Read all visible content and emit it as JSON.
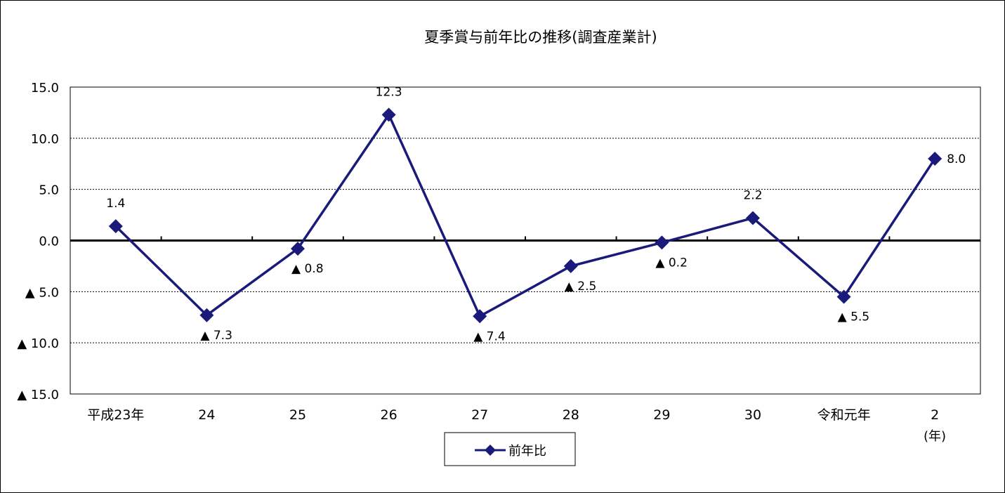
{
  "chart_data": {
    "type": "line",
    "title": "夏季賞与前年比の推移(調査産業計)",
    "categories": [
      "平成23年",
      "24",
      "25",
      "26",
      "27",
      "28",
      "29",
      "30",
      "令和元年",
      "2"
    ],
    "x_unit_label": "(年)",
    "series": [
      {
        "name": "前年比",
        "values": [
          1.4,
          -7.3,
          -0.8,
          12.3,
          -7.4,
          -2.5,
          -0.2,
          2.2,
          -5.5,
          8.0
        ],
        "data_labels": [
          "1.4",
          "▲ 7.3",
          "▲ 0.8",
          "12.3",
          "▲ 7.4",
          "▲ 2.5",
          "▲ 0.2",
          "2.2",
          "▲ 5.5",
          "8.0"
        ],
        "label_positions": [
          "above",
          "below",
          "below",
          "above",
          "below",
          "below",
          "below",
          "above",
          "below",
          "right"
        ],
        "color": "#1a1a7a"
      }
    ],
    "ylim": [
      -15,
      15
    ],
    "yticks": [
      15,
      10,
      5,
      0,
      -5,
      -10,
      -15
    ],
    "ytick_labels": [
      "15.0",
      "10.0",
      "5.0",
      "0.0",
      "▲ 5.0",
      "▲ 10.0",
      "▲ 15.0"
    ],
    "grid": "horizontal dashed",
    "legend": "bottom-center"
  }
}
